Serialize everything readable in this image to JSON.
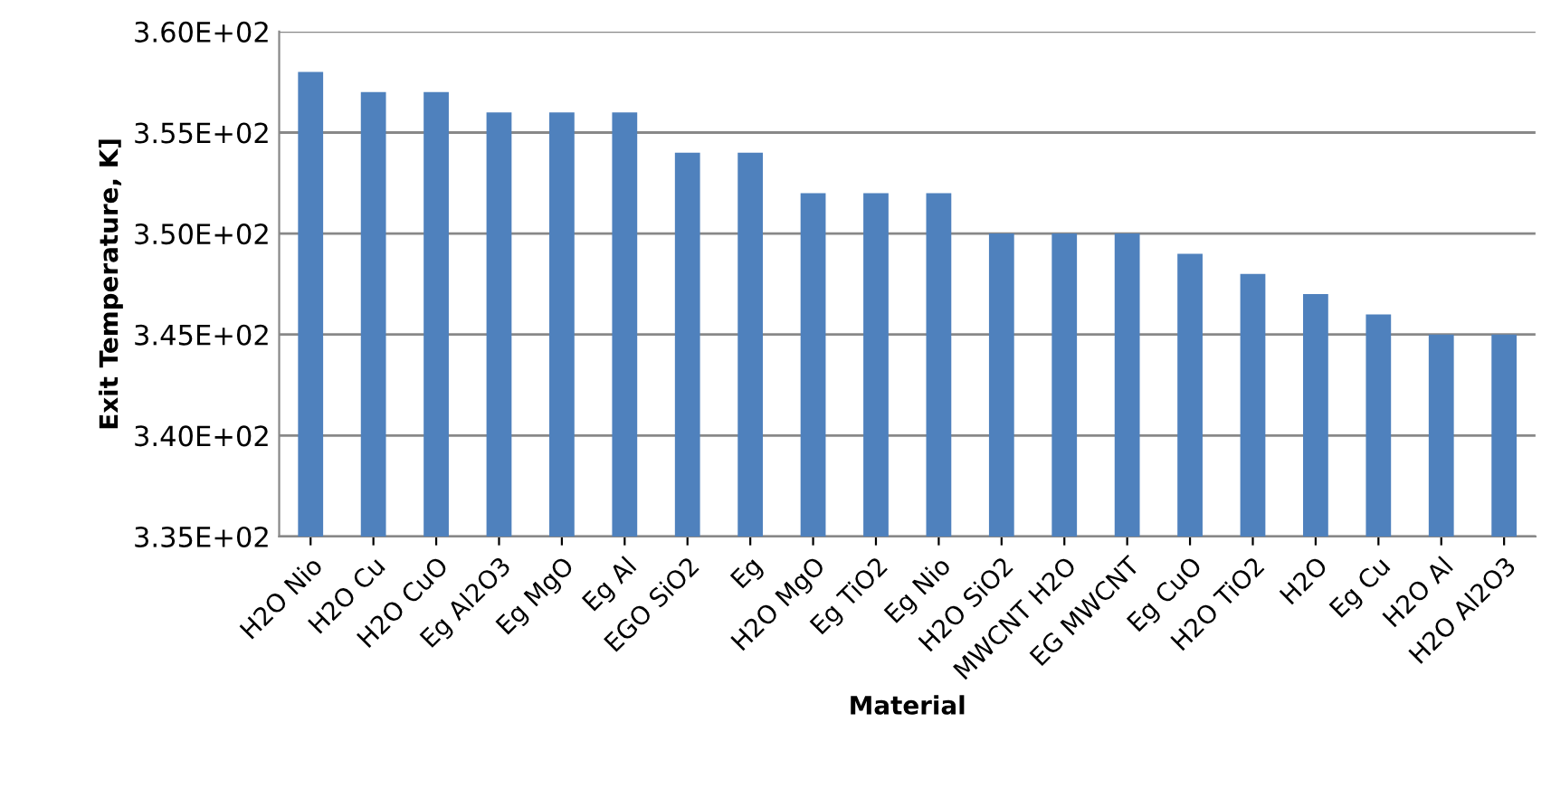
{
  "chart_data": {
    "type": "bar",
    "xlabel": "Material",
    "ylabel": "Exit Temperature, K]",
    "categories": [
      "H2O Nio",
      "H2O Cu",
      "H2O CuO",
      "Eg Al2O3",
      "Eg MgO",
      "Eg Al",
      "EGO SiO2",
      "Eg",
      "H2O MgO",
      "Eg TiO2",
      "Eg Nio",
      "H2O SiO2",
      "MWCNT H2O",
      "EG MWCNT",
      "Eg CuO",
      "H2O TiO2",
      "H2O",
      "Eg Cu",
      "H2O Al",
      "H2O Al2O3"
    ],
    "values": [
      358,
      357,
      357,
      356,
      356,
      356,
      354,
      354,
      352,
      352,
      352,
      350,
      350,
      350,
      349,
      348,
      347,
      346,
      345,
      345
    ],
    "color": "#4f81bd",
    "ylim": [
      335,
      360
    ],
    "yticks": [
      {
        "value": 335,
        "label": "3.35E+02"
      },
      {
        "value": 340,
        "label": "3.40E+02"
      },
      {
        "value": 345,
        "label": "3.45E+02"
      },
      {
        "value": 350,
        "label": "3.50E+02"
      },
      {
        "value": 355,
        "label": "3.55E+02"
      },
      {
        "value": 360,
        "label": "3.60E+02"
      }
    ],
    "grid": "y",
    "legend": false
  }
}
